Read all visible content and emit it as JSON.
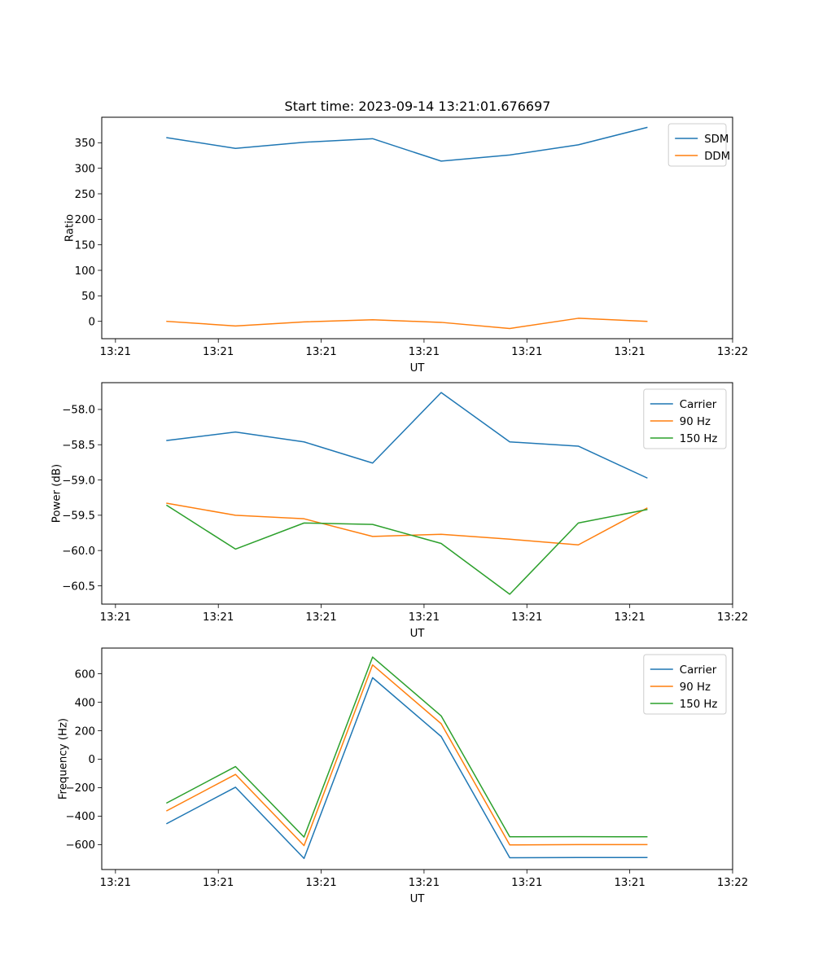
{
  "figure": {
    "title": "Start time: 2023-09-14 13:21:01.676697"
  },
  "chart_data": [
    {
      "type": "line",
      "title": "Start time: 2023-09-14 13:21:01.676697",
      "xlabel": "UT",
      "ylabel": "Ratio",
      "xlim": [
        -0.2,
        9.0
      ],
      "ylim": [
        -34,
        400
      ],
      "x_tick_values": [
        0,
        1.5,
        3,
        4.5,
        6,
        7.5,
        9
      ],
      "x_tick_labels": [
        "13:21",
        "13:21",
        "13:21",
        "13:21",
        "13:21",
        "13:21",
        "13:22"
      ],
      "y_ticks": [
        0,
        50,
        100,
        150,
        200,
        250,
        300,
        350
      ],
      "y_tick_labels": [
        "0",
        "50",
        "100",
        "150",
        "200",
        "250",
        "300",
        "350"
      ],
      "legend_position": "top-right",
      "x": [
        0.75,
        1.75,
        2.75,
        3.75,
        4.75,
        5.75,
        6.75,
        7.75
      ],
      "series": [
        {
          "name": "SDM",
          "color": "#1f77b4",
          "values": [
            360,
            339,
            351,
            358,
            314,
            326,
            346,
            380
          ]
        },
        {
          "name": "DDM",
          "color": "#ff7f0e",
          "values": [
            0,
            -9,
            -1,
            3,
            -2,
            -14,
            6,
            0
          ]
        }
      ]
    },
    {
      "type": "line",
      "xlabel": "UT",
      "ylabel": "Power (dB)",
      "xlim": [
        -0.2,
        9.0
      ],
      "ylim": [
        -60.76,
        -57.62
      ],
      "x_tick_values": [
        0,
        1.5,
        3,
        4.5,
        6,
        7.5,
        9
      ],
      "x_tick_labels": [
        "13:21",
        "13:21",
        "13:21",
        "13:21",
        "13:21",
        "13:21",
        "13:22"
      ],
      "y_ticks": [
        -58.0,
        -58.5,
        -59.0,
        -59.5,
        -60.0,
        -60.5
      ],
      "y_tick_labels": [
        "−58.0",
        "−58.5",
        "−59.0",
        "−59.5",
        "−60.0",
        "−60.5"
      ],
      "legend_position": "top-right",
      "x": [
        0.75,
        1.75,
        2.75,
        3.75,
        4.75,
        5.75,
        6.75,
        7.75
      ],
      "series": [
        {
          "name": "Carrier",
          "color": "#1f77b4",
          "values": [
            -58.44,
            -58.32,
            -58.46,
            -58.76,
            -57.76,
            -58.46,
            -58.52,
            -58.97
          ]
        },
        {
          "name": "90 Hz",
          "color": "#ff7f0e",
          "values": [
            -59.33,
            -59.5,
            -59.55,
            -59.8,
            -59.77,
            -59.84,
            -59.92,
            -59.4
          ]
        },
        {
          "name": "150 Hz",
          "color": "#2ca02c",
          "values": [
            -59.36,
            -59.98,
            -59.61,
            -59.63,
            -59.9,
            -60.62,
            -59.61,
            -59.42
          ]
        }
      ]
    },
    {
      "type": "line",
      "xlabel": "UT",
      "ylabel": "Frequency (Hz)",
      "xlim": [
        -0.2,
        9.0
      ],
      "ylim": [
        -775,
        780
      ],
      "x_tick_values": [
        0,
        1.5,
        3,
        4.5,
        6,
        7.5,
        9
      ],
      "x_tick_labels": [
        "13:21",
        "13:21",
        "13:21",
        "13:21",
        "13:21",
        "13:21",
        "13:22"
      ],
      "y_ticks": [
        -600,
        -400,
        -200,
        0,
        200,
        400,
        600
      ],
      "y_tick_labels": [
        "−600",
        "−400",
        "−200",
        "0",
        "200",
        "400",
        "600"
      ],
      "legend_position": "top-right",
      "x": [
        0.75,
        1.75,
        2.75,
        3.75,
        4.75,
        5.75,
        6.75,
        7.75
      ],
      "series": [
        {
          "name": "Carrier",
          "color": "#1f77b4",
          "values": [
            -452,
            -197,
            -697,
            572,
            159,
            -692,
            -691,
            -691
          ]
        },
        {
          "name": "90 Hz",
          "color": "#ff7f0e",
          "values": [
            -362,
            -107,
            -607,
            662,
            249,
            -602,
            -600,
            -600
          ]
        },
        {
          "name": "150 Hz",
          "color": "#2ca02c",
          "values": [
            -307,
            -52,
            -547,
            717,
            304,
            -545,
            -544,
            -545
          ]
        }
      ]
    }
  ]
}
